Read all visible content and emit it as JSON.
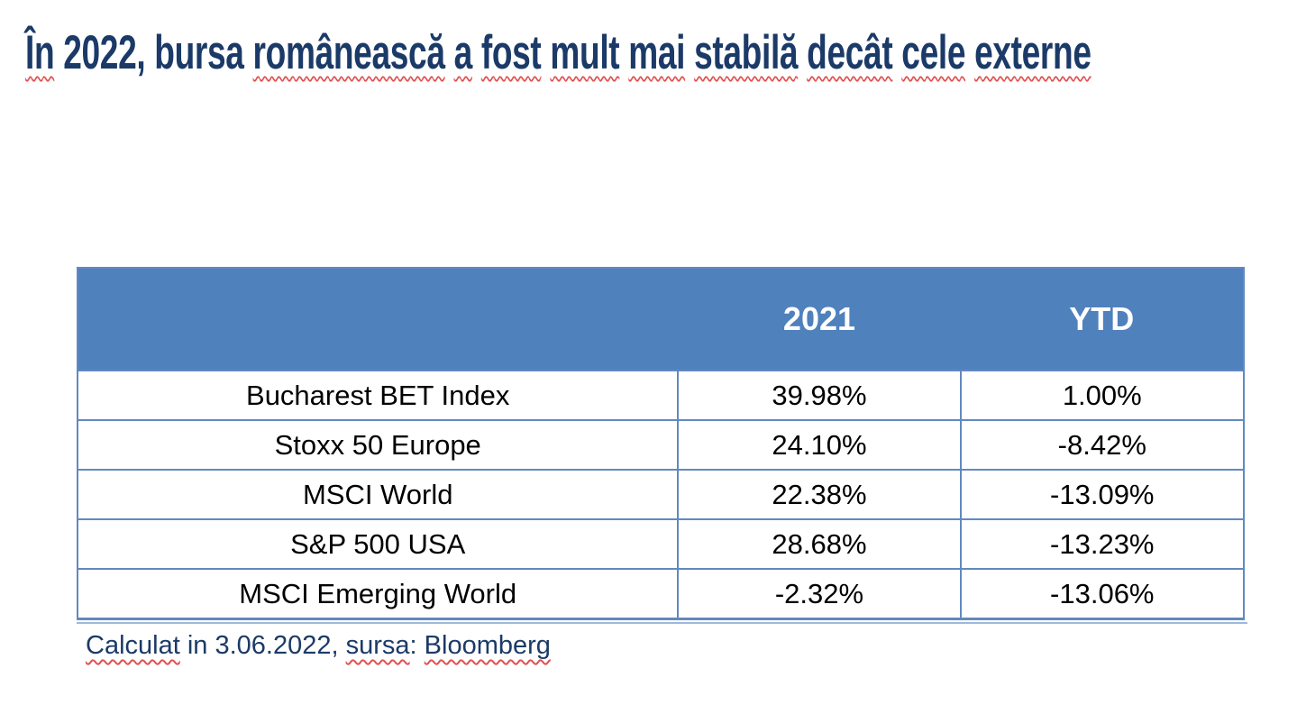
{
  "colors": {
    "title": "#1b3a68",
    "header_fill": "#4f81bd",
    "header_text": "#ffffff",
    "table_border": "#6289bf",
    "bottom_echo_line": "#9fb9da",
    "squiggle": "#e05151",
    "body_text": "#000000",
    "background": "#ffffff"
  },
  "title": {
    "text": "În 2022, bursa românească a fost mult mai stabilă decât cele externe",
    "words": [
      {
        "t": "În",
        "sq": true,
        "s": ""
      },
      {
        "t": "2022,",
        "sq": false,
        "s": ""
      },
      {
        "t": "bursa",
        "sq": false,
        "s": ""
      },
      {
        "t": "românească",
        "sq": true,
        "s": ""
      },
      {
        "t": "a",
        "sq": true,
        "s": ""
      },
      {
        "t": "fost",
        "sq": true,
        "s": ""
      },
      {
        "t": "mult",
        "sq": true,
        "s": ""
      },
      {
        "t": "mai",
        "sq": true,
        "s": ""
      },
      {
        "t": "stabilă",
        "sq": true,
        "s": ""
      },
      {
        "t": "decât",
        "sq": true,
        "s": ""
      },
      {
        "t": "cele",
        "sq": true,
        "s": ""
      },
      {
        "t": "externe",
        "sq": true,
        "s": ""
      }
    ]
  },
  "table": {
    "columns": [
      "",
      "2021",
      "YTD"
    ],
    "rows": [
      {
        "name": "Bucharest BET Index",
        "y2021": "39.98%",
        "ytd": "1.00%"
      },
      {
        "name": "Stoxx 50 Europe",
        "y2021": "24.10%",
        "ytd": "-8.42%"
      },
      {
        "name": "MSCI World",
        "y2021": "22.38%",
        "ytd": "-13.09%"
      },
      {
        "name": "S&P 500 USA",
        "y2021": "28.68%",
        "ytd": "-13.23%"
      },
      {
        "name": "MSCI Emerging World",
        "y2021": "-2.32%",
        "ytd": "-13.06%"
      }
    ]
  },
  "source": {
    "text": "Calculat in 3.06.2022, sursa: Bloomberg",
    "words": [
      {
        "t": "Calculat",
        "sq": true,
        "s": ""
      },
      {
        "t": "in",
        "sq": false,
        "s": ""
      },
      {
        "t": "3.06.2022,",
        "sq": false,
        "s": ""
      },
      {
        "t": "sursa",
        "sq": true,
        "s": ":"
      },
      {
        "t": "Bloomberg",
        "sq": true,
        "s": ""
      }
    ]
  },
  "chart_data": {
    "type": "table",
    "title": "În 2022, bursa românească a fost mult mai stabilă decât cele externe",
    "columns": [
      "",
      "2021",
      "YTD"
    ],
    "rows": [
      [
        "Bucharest BET Index",
        "39.98%",
        "1.00%"
      ],
      [
        "Stoxx 50 Europe",
        "24.10%",
        "-8.42%"
      ],
      [
        "MSCI World",
        "22.38%",
        "-13.09%"
      ],
      [
        "S&P 500 USA",
        "28.68%",
        "-13.23%"
      ],
      [
        "MSCI Emerging World",
        "-2.32%",
        "-13.06%"
      ]
    ],
    "note": "Calculat in 3.06.2022, sursa: Bloomberg",
    "layout": {
      "header_style": "solid blue fill, white bold text",
      "body_style": "white rows, blue grid borders, centered black text",
      "bottom_border": "double line"
    }
  }
}
